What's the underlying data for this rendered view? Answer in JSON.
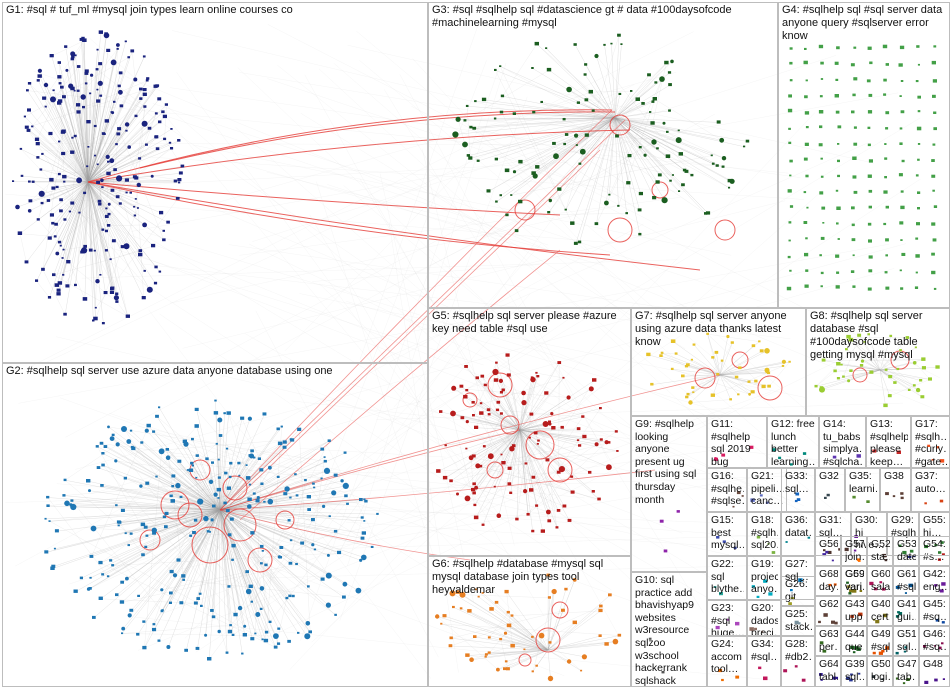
{
  "groups": [
    {
      "id": "G1",
      "label": "G1: #sql # tuf_ml #mysql join types learn online courses co",
      "color": "#1a237e",
      "kind": "cluster"
    },
    {
      "id": "G2",
      "label": "G2: #sqlhelp sql server use azure data anyone database using one",
      "color": "#1f77b4",
      "kind": "cluster"
    },
    {
      "id": "G3",
      "label": "G3: #sql #sqlhelp sql #datascience gt # data #100daysofcode #machinelearning #mysql",
      "color": "#1b5e20",
      "kind": "cluster"
    },
    {
      "id": "G4",
      "label": "G4: #sqlhelp sql #sql server data anyone query #sqlserver error know",
      "color": "#43a047",
      "kind": "grid"
    },
    {
      "id": "G5",
      "label": "G5: #sqlhelp sql server please #azure key need table #sql use",
      "color": "#b71c1c",
      "kind": "cluster"
    },
    {
      "id": "G6",
      "label": "G6: #sqlhelp #database #mysql sql mysql database join types tool heyvaldemar",
      "color": "#e67e22",
      "kind": "cluster"
    },
    {
      "id": "G7",
      "label": "G7: #sqlhelp sql server anyone using azure data thanks latest know",
      "color": "#e6c229",
      "kind": "cluster"
    },
    {
      "id": "G8",
      "label": "G8: #sqlhelp sql server database #sql #100daysofcode table getting mysql #mysql",
      "color": "#9acd32",
      "kind": "cluster"
    },
    {
      "id": "G9",
      "label": "G9: #sqlhelp looking anyone present ug first using sql thursday month",
      "color": "#8e24aa",
      "kind": "small"
    },
    {
      "id": "G10",
      "label": "G10: sql practice add bhavishyap9 websites w3resource sqlzoo w3school hackerrank sqlshack",
      "color": "#555555",
      "kind": "small"
    },
    {
      "id": "G11",
      "label": "G11: #sqlhelp sql 2019 bug anyone…",
      "color": "#d81b60",
      "kind": "small"
    },
    {
      "id": "G12",
      "label": "G12: free lunch better learning…",
      "color": "#00897b",
      "kind": "small"
    },
    {
      "id": "G13",
      "label": "G13: #sqlhelp please keep…",
      "color": "#c62828",
      "kind": "small"
    },
    {
      "id": "G14",
      "label": "G14: tu_babs simplya… #sqlcha…",
      "color": "#5e35b1",
      "kind": "small"
    },
    {
      "id": "G15",
      "label": "G15: best mysql…",
      "color": "#3949ab",
      "kind": "small"
    },
    {
      "id": "G16",
      "label": "G16: #sqlhe… #sqlse…",
      "color": "#6d4c41",
      "kind": "small"
    },
    {
      "id": "G17",
      "label": "G17: #sqlh… #curly… #gate… ",
      "color": "#f4511e",
      "kind": "small"
    },
    {
      "id": "G18",
      "label": "G18: #sqlh… sql20…",
      "color": "#7cb342",
      "kind": "small"
    },
    {
      "id": "G19",
      "label": "G19: project anyo…",
      "color": "#00acc1",
      "kind": "small"
    },
    {
      "id": "G20",
      "label": "G20: dados preci…",
      "color": "#8d6e63",
      "kind": "small"
    },
    {
      "id": "G21",
      "label": "G21: pipeli… canc…",
      "color": "#5c6bc0",
      "kind": "small"
    },
    {
      "id": "G22",
      "label": "G22: sql blythe…",
      "color": "#26a69a",
      "kind": "small"
    },
    {
      "id": "G23",
      "label": "G23: #sql huge…",
      "color": "#ab47bc",
      "kind": "small"
    },
    {
      "id": "G24",
      "label": "G24: accom tool…",
      "color": "#ef6c00",
      "kind": "small"
    },
    {
      "id": "G25",
      "label": "G25: stack…",
      "color": "#78909c",
      "kind": "small"
    },
    {
      "id": "G26",
      "label": "G26: git",
      "color": "#9e9d24",
      "kind": "small"
    },
    {
      "id": "G27",
      "label": "G27: sql…",
      "color": "#0277bd",
      "kind": "small"
    },
    {
      "id": "G28",
      "label": "G28: #db2…",
      "color": "#ad1457",
      "kind": "small"
    },
    {
      "id": "G29",
      "label": "G29: #sqlh…",
      "color": "#2e7d32",
      "kind": "small"
    },
    {
      "id": "G30",
      "label": "G30: hi hive…",
      "color": "#6a1b9a",
      "kind": "small"
    },
    {
      "id": "G31",
      "label": "G31: sql…",
      "color": "#4e342e",
      "kind": "small"
    },
    {
      "id": "G32",
      "label": "G32",
      "color": "#37474f",
      "kind": "small"
    },
    {
      "id": "G33",
      "label": "G33: sql…",
      "color": "#1565c0",
      "kind": "small"
    },
    {
      "id": "G34",
      "label": "G34: #sql…",
      "color": "#c2185b",
      "kind": "small"
    },
    {
      "id": "G35",
      "label": "G35: learni…",
      "color": "#558b2f",
      "kind": "small"
    },
    {
      "id": "G36",
      "label": "G36: datat…",
      "color": "#00838f",
      "kind": "small"
    },
    {
      "id": "G37",
      "label": "G37: auto…",
      "color": "#d84315",
      "kind": "small"
    },
    {
      "id": "G38",
      "label": "G38",
      "color": "#5d4037",
      "kind": "small"
    },
    {
      "id": "G39",
      "label": "G39: sql…",
      "color": "#283593",
      "kind": "small"
    },
    {
      "id": "G40",
      "label": "G40: cert…",
      "color": "#827717",
      "kind": "small"
    },
    {
      "id": "G41",
      "label": "G41: gui…",
      "color": "#00695c",
      "kind": "small"
    },
    {
      "id": "G42",
      "label": "G42: eng…",
      "color": "#6a1b9a",
      "kind": "small"
    },
    {
      "id": "G43",
      "label": "G43: upp…",
      "color": "#bf360c",
      "kind": "small"
    },
    {
      "id": "G44",
      "label": "G44: que…",
      "color": "#1b5e20",
      "kind": "small"
    },
    {
      "id": "G45",
      "label": "G45: #sq…",
      "color": "#0d47a1",
      "kind": "small"
    },
    {
      "id": "G46",
      "label": "G46: #sq…",
      "color": "#880e4f",
      "kind": "small"
    },
    {
      "id": "G47",
      "label": "G47: tab…",
      "color": "#33691e",
      "kind": "small"
    },
    {
      "id": "G48",
      "label": "G48",
      "color": "#4a148c",
      "kind": "small"
    },
    {
      "id": "G49",
      "label": "G49: #sql…",
      "color": "#e65100",
      "kind": "small"
    },
    {
      "id": "G50",
      "label": "G50: logi…",
      "color": "#263238",
      "kind": "small"
    },
    {
      "id": "G51",
      "label": "G51: sql…",
      "color": "#006064",
      "kind": "small"
    },
    {
      "id": "G52",
      "label": "G52: sta…",
      "color": "#3e2723",
      "kind": "small"
    },
    {
      "id": "G53",
      "label": "G53: date",
      "color": "#1a237e",
      "kind": "small"
    },
    {
      "id": "G54",
      "label": "G54: #s…",
      "color": "#b71c1c",
      "kind": "small"
    },
    {
      "id": "G55",
      "label": "G55: hi…",
      "color": "#2e7d32",
      "kind": "small"
    },
    {
      "id": "G56",
      "label": "G56",
      "color": "#4527a0",
      "kind": "small"
    },
    {
      "id": "G57",
      "label": "G57: join…",
      "color": "#ff6f00",
      "kind": "small"
    },
    {
      "id": "G58",
      "label": "G58: sql…",
      "color": "#004d40",
      "kind": "small"
    },
    {
      "id": "G59",
      "label": "G59: vari…",
      "color": "#827717",
      "kind": "small"
    },
    {
      "id": "G60",
      "label": "G60: sala…",
      "color": "#ad1457",
      "kind": "small"
    },
    {
      "id": "G61",
      "label": "G61: #sql",
      "color": "#01579b",
      "kind": "small"
    },
    {
      "id": "G62",
      "label": "G62",
      "color": "#5d4037",
      "kind": "small"
    },
    {
      "id": "G63",
      "label": "G63: per…",
      "color": "#33691e",
      "kind": "small"
    },
    {
      "id": "G64",
      "label": "G64: tabl…",
      "color": "#311b92",
      "kind": "small"
    },
    {
      "id": "G68",
      "label": "G68: day…",
      "color": "#e65100",
      "kind": "small"
    },
    {
      "id": "G69",
      "label": "G69: vari…",
      "color": "#1b5e20",
      "kind": "small"
    }
  ]
}
